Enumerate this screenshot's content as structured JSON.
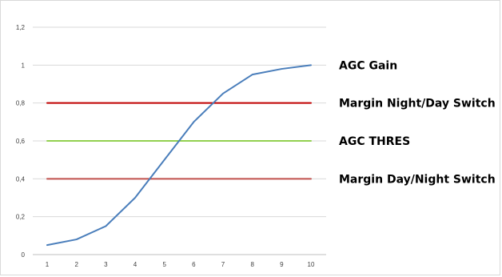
{
  "chart_data": {
    "type": "line",
    "title": "",
    "xlabel": "",
    "ylabel": "",
    "x": [
      1,
      2,
      3,
      4,
      5,
      6,
      7,
      8,
      9,
      10
    ],
    "xlim": [
      1,
      10
    ],
    "ylim": [
      0,
      1.2
    ],
    "yticks": [
      "0",
      "0,2",
      "0,4",
      "0,6",
      "0,8",
      "1",
      "1,2"
    ],
    "ytick_values": [
      0,
      0.2,
      0.4,
      0.6,
      0.8,
      1.0,
      1.2
    ],
    "xticks": [
      "1",
      "2",
      "3",
      "4",
      "5",
      "6",
      "7",
      "8",
      "9",
      "10"
    ],
    "grid": "horizontal",
    "legend": "none",
    "series": [
      {
        "name": "AGC Gain",
        "color": "#4a7ebb",
        "values": [
          0.05,
          0.08,
          0.15,
          0.3,
          0.5,
          0.7,
          0.85,
          0.95,
          0.98,
          1.0
        ]
      },
      {
        "name": "Margin Night/Day Switch",
        "color": "#c00000",
        "values": [
          0.8,
          0.8,
          0.8,
          0.8,
          0.8,
          0.8,
          0.8,
          0.8,
          0.8,
          0.8
        ]
      },
      {
        "name": "AGC THRES",
        "color": "#92d050",
        "values": [
          0.6,
          0.6,
          0.6,
          0.6,
          0.6,
          0.6,
          0.6,
          0.6,
          0.6,
          0.6
        ]
      },
      {
        "name": "Margin Day/Night Switch",
        "color": "#c0504d",
        "values": [
          0.4,
          0.4,
          0.4,
          0.4,
          0.4,
          0.4,
          0.4,
          0.4,
          0.4,
          0.4
        ]
      }
    ]
  }
}
